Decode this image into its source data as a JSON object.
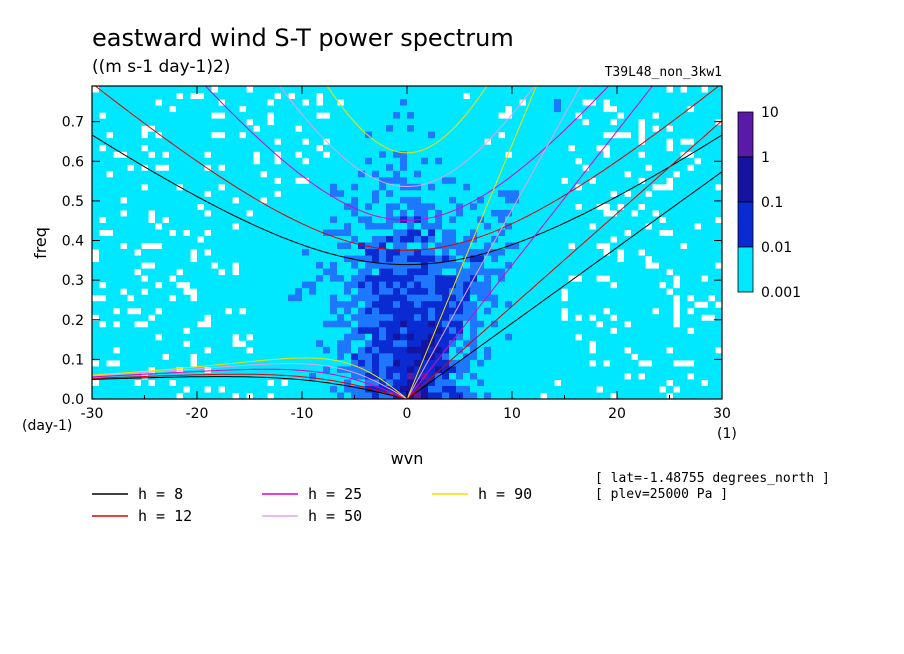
{
  "chart_data": {
    "type": "heatmap",
    "title": "eastward wind S-T power spectrum",
    "subtitle": "((m s-1 day-1)2)",
    "experiment": "T39L48_non_3kw1",
    "xlabel": "wvn",
    "ylabel": "freq",
    "x_unit": "(1)",
    "y_unit": "(day-1)",
    "xlim": [
      -30,
      30
    ],
    "ylim": [
      0,
      0.79
    ],
    "xticks": [
      "-30",
      "-20",
      "-10",
      "0",
      "10",
      "20",
      "30"
    ],
    "yticks": [
      "0.0",
      "0.1",
      "0.2",
      "0.3",
      "0.4",
      "0.5",
      "0.6",
      "0.7"
    ],
    "colorbar": {
      "levels": [
        "0.001",
        "0.01",
        "0.1",
        "1",
        "10"
      ],
      "colors": [
        "#00e8ff",
        "#1e78ff",
        "#0a2ad2",
        "#1414a0",
        "#5a1aa8"
      ]
    },
    "dispersion_curves": [
      {
        "label": "h =  8",
        "h": 8,
        "color": "#000000"
      },
      {
        "label": "h = 12",
        "h": 12,
        "color": "#e00000"
      },
      {
        "label": "h = 25",
        "h": 25,
        "color": "#e000c8"
      },
      {
        "label": "h = 50",
        "h": 50,
        "color": "#e8a0e8"
      },
      {
        "label": "h = 90",
        "h": 90,
        "color": "#f0e000"
      }
    ],
    "annotations": [
      "[ lat=-1.48755 degrees_north ]",
      "[ plev=25000 Pa ]"
    ]
  }
}
